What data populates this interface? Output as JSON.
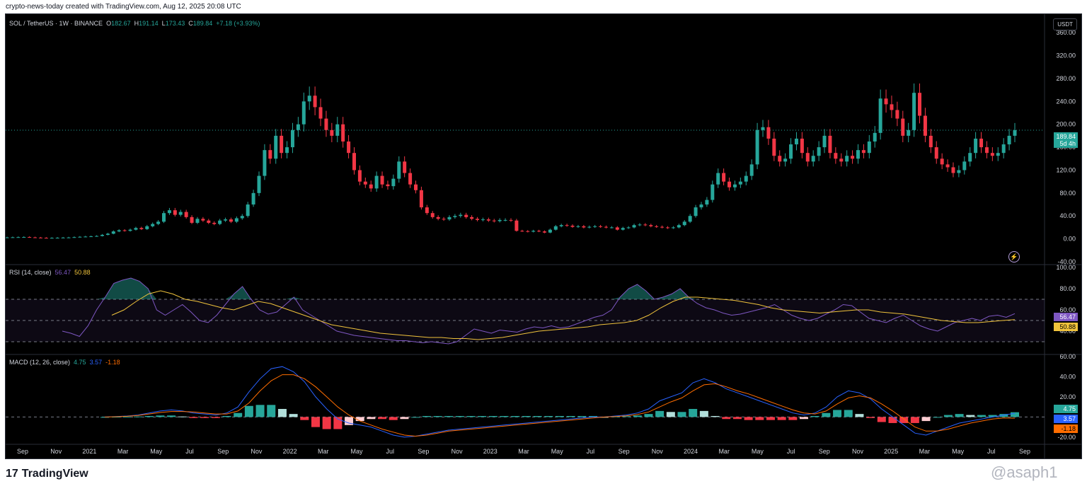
{
  "header": {
    "attribution": "crypto-news-today created with TradingView.com, Aug 12, 2025 20:08 UTC"
  },
  "price_panel": {
    "symbol": "SOL / TetherUS · 1W · BINANCE",
    "o_label": "O",
    "o_value": "182.67",
    "h_label": "H",
    "h_value": "191.14",
    "l_label": "L",
    "l_value": "173.43",
    "c_label": "C",
    "c_value": "189.84",
    "change": "+7.18 (+3.93%)",
    "currency": "USDT",
    "last_price": "189.84",
    "countdown": "5d 4h",
    "y_ticks": [
      "360.00",
      "320.00",
      "280.00",
      "240.00",
      "200.00",
      "160.00",
      "120.00",
      "80.00",
      "40.00",
      "0.00",
      "-40.00"
    ]
  },
  "rsi_panel": {
    "title": "RSI (14, close)",
    "rsi_value": "56.47",
    "ma_value": "50.88",
    "y_ticks": [
      "100.00",
      "80.00",
      "60.00",
      "40.00"
    ]
  },
  "macd_panel": {
    "title": "MACD (12, 26, close)",
    "hist_value": "4.75",
    "macd_value": "3.57",
    "signal_value": "-1.18",
    "y_ticks": [
      "60.00",
      "40.00",
      "20.00",
      "-20.00"
    ]
  },
  "x_axis": {
    "labels": [
      "Sep",
      "Nov",
      "2021",
      "Mar",
      "May",
      "Jul",
      "Sep",
      "Nov",
      "2022",
      "Mar",
      "May",
      "Jul",
      "Sep",
      "Nov",
      "2023",
      "Mar",
      "May",
      "Jul",
      "Sep",
      "Nov",
      "2024",
      "Mar",
      "May",
      "Jul",
      "Sep",
      "Nov",
      "2025",
      "Mar",
      "May",
      "Jul",
      "Sep"
    ]
  },
  "colors": {
    "up": "#26a69a",
    "down": "#f23645",
    "rsi": "#7e57c2",
    "rsi_ma": "#f0c33c",
    "macd": "#2962ff",
    "signal": "#ff6d00"
  },
  "footer": {
    "brand": "TradingView",
    "watermark": "@asaph1"
  },
  "chart_data": [
    {
      "type": "candlestick",
      "title": "SOL / TetherUS · 1W · BINANCE",
      "ylim": [
        -40,
        380
      ],
      "x_ticks": [
        "Sep",
        "Nov",
        "2021",
        "Mar",
        "May",
        "Jul",
        "Sep",
        "Nov",
        "2022",
        "Mar",
        "May",
        "Jul",
        "Sep",
        "Nov",
        "2023",
        "Mar",
        "May",
        "Jul",
        "Sep",
        "Nov",
        "2024",
        "Mar",
        "May",
        "Jul",
        "Sep",
        "Nov",
        "2025",
        "Mar",
        "May",
        "Jul",
        "Sep"
      ],
      "approx_weekly_close": [
        2.5,
        2.8,
        3.0,
        3.2,
        2.6,
        2.2,
        1.8,
        1.6,
        1.7,
        1.9,
        2.2,
        2.4,
        3.0,
        3.6,
        4.0,
        4.4,
        5.0,
        7.0,
        9.0,
        13.0,
        15.0,
        14.0,
        16.0,
        19.0,
        17.0,
        22.0,
        26.0,
        30.0,
        45.0,
        50.0,
        42.0,
        47.0,
        38.0,
        28.0,
        35.0,
        32.0,
        28.0,
        26.0,
        32.0,
        34.0,
        30.0,
        36.0,
        40.0,
        60.0,
        80.0,
        110.0,
        155.0,
        140.0,
        180.0,
        150.0,
        160.0,
        190.0,
        200.0,
        240.0,
        250.0,
        230.0,
        210.0,
        190.0,
        180.0,
        200.0,
        170.0,
        150.0,
        120.0,
        100.0,
        95.0,
        88.0,
        110.0,
        95.0,
        92.0,
        105.0,
        135.0,
        115.0,
        95.0,
        85.0,
        55.0,
        45.0,
        38.0,
        35.0,
        34.0,
        38.0,
        40.0,
        42.0,
        38.0,
        35.0,
        33.0,
        34.0,
        32.0,
        31.0,
        33.0,
        33.0,
        32.0,
        14.0,
        13.5,
        12.5,
        14.0,
        13.0,
        11.0,
        16.0,
        22.0,
        24.0,
        23.0,
        21.0,
        22.0,
        20.0,
        21.0,
        22.0,
        21.0,
        20.0,
        20.0,
        16.0,
        19.0,
        20.0,
        24.0,
        25.0,
        24.0,
        22.0,
        21.0,
        20.0,
        19.0,
        20.0,
        24.0,
        30.0,
        40.0,
        55.0,
        60.0,
        68.0,
        95.0,
        115.0,
        100.0,
        90.0,
        95.0,
        100.0,
        110.0,
        130.0,
        190.0,
        195.0,
        175.0,
        145.0,
        135.0,
        140.0,
        165.0,
        175.0,
        150.0,
        135.0,
        145.0,
        160.0,
        180.0,
        150.0,
        140.0,
        135.0,
        145.0,
        140.0,
        155.0,
        150.0,
        170.0,
        185.0,
        245.0,
        235.0,
        225.0,
        210.0,
        180.0,
        190.0,
        255.0,
        215.0,
        180.0,
        160.0,
        140.0,
        130.0,
        125.0,
        115.0,
        120.0,
        135.0,
        150.0,
        175.0,
        160.0,
        150.0,
        145.0,
        150.0,
        165.0,
        180.0,
        189.84
      ]
    },
    {
      "type": "line",
      "title": "RSI (14, close)",
      "ylim": [
        20,
        100
      ],
      "series": [
        {
          "name": "RSI",
          "values": [
            40,
            38,
            35,
            45,
            60,
            72,
            85,
            88,
            90,
            87,
            80,
            60,
            55,
            60,
            65,
            58,
            50,
            48,
            55,
            65,
            75,
            82,
            70,
            60,
            56,
            58,
            65,
            72,
            60,
            55,
            50,
            45,
            40,
            38,
            36,
            35,
            34,
            33,
            32,
            31,
            31,
            30,
            29,
            30,
            29,
            28,
            30,
            36,
            42,
            40,
            38,
            41,
            40,
            39,
            42,
            44,
            43,
            45,
            43,
            44,
            47,
            50,
            53,
            55,
            60,
            72,
            80,
            84,
            78,
            70,
            72,
            75,
            80,
            72,
            66,
            62,
            60,
            57,
            55,
            56,
            58,
            60,
            62,
            65,
            60,
            55,
            52,
            50,
            52,
            56,
            60,
            65,
            64,
            58,
            52,
            50,
            48,
            52,
            55,
            50,
            45,
            42,
            40,
            44,
            48,
            50,
            52,
            50,
            54,
            55,
            53,
            56.47
          ]
        },
        {
          "name": "RSI-based MA",
          "values": [
            55,
            60,
            68,
            75,
            78,
            75,
            70,
            68,
            65,
            62,
            60,
            64,
            68,
            66,
            62,
            58,
            54,
            50,
            46,
            44,
            42,
            40,
            38,
            37,
            36,
            35,
            34,
            34,
            33,
            33,
            32,
            33,
            34,
            36,
            38,
            40,
            41,
            42,
            43,
            44,
            46,
            47,
            48,
            50,
            55,
            62,
            68,
            72,
            72,
            71,
            70,
            69,
            67,
            65,
            62,
            60,
            59,
            58,
            57,
            58,
            59,
            60,
            60,
            58,
            57,
            56,
            54,
            52,
            50,
            49,
            48,
            48,
            49,
            50,
            50.88
          ]
        }
      ]
    },
    {
      "type": "bar",
      "title": "MACD (12, 26, close)",
      "ylim": [
        -25,
        60
      ],
      "series": [
        {
          "name": "MACD",
          "values": [
            0,
            0.5,
            1,
            2,
            4,
            6,
            7,
            6,
            4,
            3,
            2,
            4,
            10,
            25,
            38,
            48,
            50,
            45,
            35,
            20,
            8,
            -2,
            -6,
            -8,
            -10,
            -14,
            -18,
            -20,
            -19,
            -17,
            -15,
            -13,
            -12,
            -11,
            -10,
            -9,
            -8,
            -7,
            -6,
            -5,
            -4,
            -3,
            -2,
            -1,
            0,
            0,
            1,
            2,
            4,
            8,
            16,
            20,
            24,
            34,
            38,
            34,
            28,
            24,
            20,
            16,
            12,
            8,
            4,
            2,
            4,
            10,
            20,
            26,
            24,
            18,
            8,
            0,
            -8,
            -16,
            -18,
            -14,
            -10,
            -6,
            -4,
            -2,
            0,
            2,
            3.57
          ]
        },
        {
          "name": "Signal",
          "values": [
            0,
            0.3,
            0.7,
            1.5,
            3,
            4.5,
            5.5,
            5.5,
            5,
            4,
            3,
            3,
            6,
            14,
            26,
            36,
            42,
            42,
            38,
            30,
            20,
            10,
            2,
            -4,
            -8,
            -12,
            -15,
            -18,
            -19,
            -18,
            -16,
            -14,
            -13,
            -12,
            -11,
            -10,
            -9,
            -8,
            -7,
            -6,
            -5,
            -4,
            -3,
            -2,
            -1,
            0,
            0.5,
            1.2,
            2.5,
            5,
            10,
            15,
            19,
            26,
            32,
            33,
            30,
            26,
            23,
            19,
            15,
            11,
            7,
            4,
            3,
            6,
            13,
            19,
            21,
            19,
            13,
            6,
            -2,
            -10,
            -14,
            -14,
            -12,
            -9,
            -6,
            -4,
            -2,
            -1,
            -1.18
          ]
        },
        {
          "name": "Histogram",
          "values": [
            0,
            0.2,
            0.3,
            0.5,
            1,
            1.5,
            1.5,
            0.5,
            -1,
            -1,
            -1,
            1,
            4,
            11,
            12,
            12,
            8,
            3,
            -3,
            -10,
            -12,
            -12,
            -8,
            -4,
            -2,
            -2,
            -3,
            -2,
            0,
            1,
            1,
            1,
            1,
            1,
            1,
            1,
            1,
            1,
            1,
            1,
            1,
            1,
            1,
            1,
            1,
            0,
            0.5,
            0.8,
            1.5,
            3,
            6,
            5,
            5,
            8,
            6,
            1,
            -2,
            -2,
            -3,
            -3,
            -3,
            -3,
            -3,
            -2,
            1,
            4,
            7,
            7,
            3,
            -1,
            -5,
            -6,
            -6,
            -6,
            -4,
            0,
            2,
            3,
            2,
            2,
            2,
            3,
            4.75
          ]
        }
      ]
    }
  ]
}
